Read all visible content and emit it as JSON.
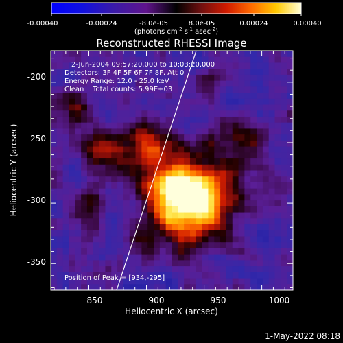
{
  "colorbar": {
    "tick_labels": [
      "-0.00040",
      "-0.00024",
      "-8.0e-05",
      "8.0e-05",
      "0.00024",
      "0.00040"
    ],
    "units_label": "(photons cm",
    "units_sup1": "-2",
    "units_mid1": " s",
    "units_sup2": "-1",
    "units_mid2": " asec",
    "units_sup3": "-2",
    "units_end": ")",
    "min": -0.0004,
    "max": 0.0004,
    "colormap": "rhessi-thermal"
  },
  "plot": {
    "title": "Reconstructed RHESSI Image",
    "info_lines": [
      "2-Jun-2004 09:57:20.000 to 10:03:20.000",
      "Detectors: 3F 4F 5F 6F 7F 8F, Att 0",
      "Energy Range: 12.0 - 25.0 keV",
      "Clean    Total counts: 5.99E+03"
    ],
    "peak_label": "Position of Peak = [934,-295]",
    "x_axis": {
      "label": "Heliocentric X (arcsec)",
      "ticks": [
        "850",
        "900",
        "950",
        "1000"
      ],
      "range": [
        817,
        1027
      ]
    },
    "y_axis": {
      "label": "Heliocentric Y (arcsec)",
      "ticks": [
        "-200",
        "-250",
        "-300",
        "-350"
      ],
      "range": [
        -372,
        -174
      ]
    },
    "limb_color": "#ffffff"
  },
  "timestamp": "1-May-2022 08:18"
}
